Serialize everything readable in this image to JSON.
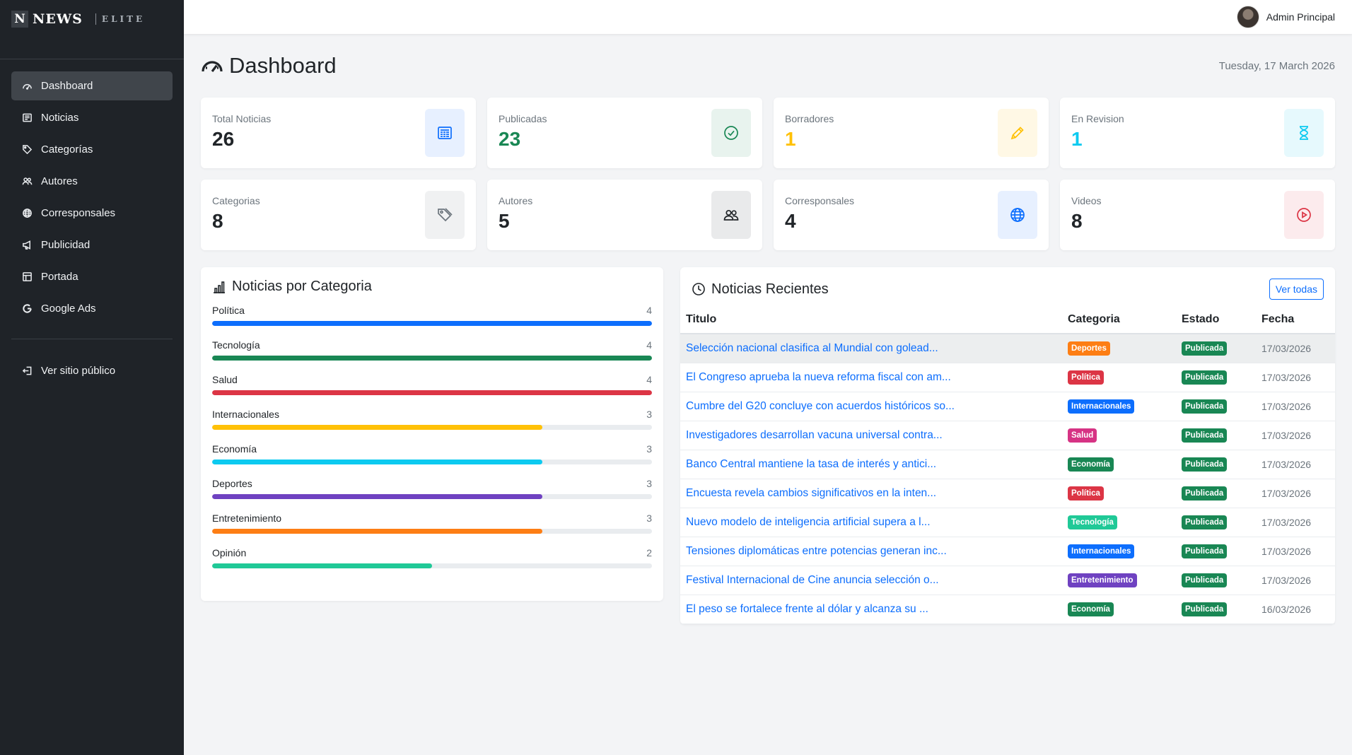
{
  "brand": {
    "mark": "N",
    "name": "NEWS",
    "tagline": "ELITE"
  },
  "sidebar": {
    "items": [
      {
        "label": "Dashboard",
        "icon": "speedometer-icon",
        "active": true
      },
      {
        "label": "Noticias",
        "icon": "newspaper-icon"
      },
      {
        "label": "Categorías",
        "icon": "tags-icon"
      },
      {
        "label": "Autores",
        "icon": "people-icon"
      },
      {
        "label": "Corresponsales",
        "icon": "globe-icon"
      },
      {
        "label": "Publicidad",
        "icon": "megaphone-icon"
      },
      {
        "label": "Portada",
        "icon": "layout-icon"
      },
      {
        "label": "Google Ads",
        "icon": "google-icon"
      }
    ],
    "public_link": "Ver sitio público"
  },
  "topbar": {
    "user_name": "Admin Principal"
  },
  "page": {
    "title": "Dashboard",
    "date": "Tuesday, 17 March 2026"
  },
  "stats": [
    {
      "label": "Total Noticias",
      "value": "26",
      "color": "#212529",
      "icon": "newspaper-icon",
      "icon_color": "#0d6efd",
      "icon_bg": "#e7f0ff"
    },
    {
      "label": "Publicadas",
      "value": "23",
      "color": "#198754",
      "icon": "check-circle-icon",
      "icon_color": "#198754",
      "icon_bg": "#e8f3ee"
    },
    {
      "label": "Borradores",
      "value": "1",
      "color": "#ffc107",
      "icon": "pencil-icon",
      "icon_color": "#ffc107",
      "icon_bg": "#fff8e5"
    },
    {
      "label": "En Revision",
      "value": "1",
      "color": "#0dcaf0",
      "icon": "hourglass-icon",
      "icon_color": "#0dcaf0",
      "icon_bg": "#e6f9fd"
    },
    {
      "label": "Categorias",
      "value": "8",
      "color": "#212529",
      "icon": "tags-icon",
      "icon_color": "#6c757d",
      "icon_bg": "#f0f1f2"
    },
    {
      "label": "Autores",
      "value": "5",
      "color": "#212529",
      "icon": "people-icon",
      "icon_color": "#212529",
      "icon_bg": "#e9eaeb"
    },
    {
      "label": "Corresponsales",
      "value": "4",
      "color": "#212529",
      "icon": "globe-icon",
      "icon_color": "#0d6efd",
      "icon_bg": "#e7f0ff"
    },
    {
      "label": "Videos",
      "value": "8",
      "color": "#212529",
      "icon": "play-circle-icon",
      "icon_color": "#dc3545",
      "icon_bg": "#fcebed"
    }
  ],
  "categories_panel": {
    "title": "Noticias por Categoria",
    "max": 4,
    "items": [
      {
        "name": "Política",
        "count": 4,
        "color": "#0d6efd"
      },
      {
        "name": "Tecnología",
        "count": 4,
        "color": "#198754"
      },
      {
        "name": "Salud",
        "count": 4,
        "color": "#dc3545"
      },
      {
        "name": "Internacionales",
        "count": 3,
        "color": "#ffc107"
      },
      {
        "name": "Economía",
        "count": 3,
        "color": "#0dcaf0"
      },
      {
        "name": "Deportes",
        "count": 3,
        "color": "#6f42c1"
      },
      {
        "name": "Entretenimiento",
        "count": 3,
        "color": "#fd7e14"
      },
      {
        "name": "Opinión",
        "count": 2,
        "color": "#20c997"
      }
    ]
  },
  "recent_panel": {
    "title": "Noticias Recientes",
    "view_all": "Ver todas",
    "columns": [
      "Titulo",
      "Categoria",
      "Estado",
      "Fecha"
    ],
    "rows": [
      {
        "title": "Selección nacional clasifica al Mundial con golead...",
        "category": "Deportes",
        "cat_color": "#fd7e14",
        "status": "Publicada",
        "date": "17/03/2026"
      },
      {
        "title": "El Congreso aprueba la nueva reforma fiscal con am...",
        "category": "Política",
        "cat_color": "#dc3545",
        "status": "Publicada",
        "date": "17/03/2026"
      },
      {
        "title": "Cumbre del G20 concluye con acuerdos históricos so...",
        "category": "Internacionales",
        "cat_color": "#0d6efd",
        "status": "Publicada",
        "date": "17/03/2026"
      },
      {
        "title": "Investigadores desarrollan vacuna universal contra...",
        "category": "Salud",
        "cat_color": "#d63384",
        "status": "Publicada",
        "date": "17/03/2026"
      },
      {
        "title": "Banco Central mantiene la tasa de interés y antici...",
        "category": "Economía",
        "cat_color": "#198754",
        "status": "Publicada",
        "date": "17/03/2026"
      },
      {
        "title": "Encuesta revela cambios significativos en la inten...",
        "category": "Política",
        "cat_color": "#dc3545",
        "status": "Publicada",
        "date": "17/03/2026"
      },
      {
        "title": "Nuevo modelo de inteligencia artificial supera a l...",
        "category": "Tecnología",
        "cat_color": "#20c997",
        "status": "Publicada",
        "date": "17/03/2026"
      },
      {
        "title": "Tensiones diplomáticas entre potencias generan inc...",
        "category": "Internacionales",
        "cat_color": "#0d6efd",
        "status": "Publicada",
        "date": "17/03/2026"
      },
      {
        "title": "Festival Internacional de Cine anuncia selección o...",
        "category": "Entretenimiento",
        "cat_color": "#6f42c1",
        "status": "Publicada",
        "date": "17/03/2026"
      },
      {
        "title": "El peso se fortalece frente al dólar y alcanza su ...",
        "category": "Economía",
        "cat_color": "#198754",
        "status": "Publicada",
        "date": "16/03/2026"
      }
    ]
  }
}
